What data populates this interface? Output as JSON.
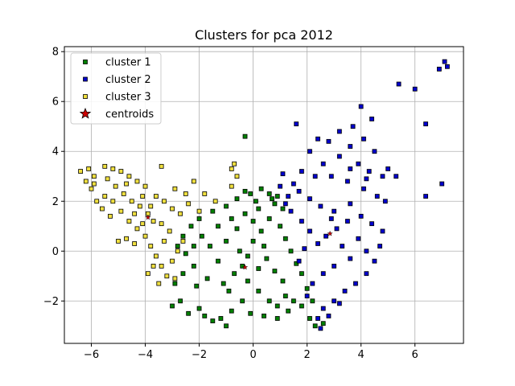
{
  "chart_data": {
    "type": "scatter",
    "title": "Clusters for pca 2012",
    "xlabel": "",
    "ylabel": "",
    "xlim": [
      -7.0,
      7.8
    ],
    "ylim": [
      -3.7,
      8.2
    ],
    "xticks": [
      -6,
      -4,
      -2,
      0,
      2,
      4,
      6
    ],
    "yticks": [
      -2,
      0,
      2,
      4,
      6,
      8
    ],
    "grid": true,
    "legend_position": "upper-left",
    "series": [
      {
        "name": "cluster 1",
        "color": "#008000",
        "marker": "square",
        "points": [
          [
            -0.3,
            2.4
          ],
          [
            0.3,
            2.5
          ],
          [
            0.6,
            2.3
          ],
          [
            0.9,
            2.2
          ],
          [
            -0.6,
            2.1
          ],
          [
            0.1,
            2.0
          ],
          [
            -1.0,
            1.8
          ],
          [
            -1.5,
            1.6
          ],
          [
            0.8,
            1.9
          ],
          [
            1.1,
            1.7
          ],
          [
            -2.0,
            1.3
          ],
          [
            -2.3,
            1.0
          ],
          [
            -2.6,
            0.6
          ],
          [
            -2.8,
            0.2
          ],
          [
            -2.5,
            -0.1
          ],
          [
            -2.2,
            -0.6
          ],
          [
            -2.6,
            -0.9
          ],
          [
            -2.9,
            -1.3
          ],
          [
            -3.0,
            -2.2
          ],
          [
            -2.7,
            -2.0
          ],
          [
            -2.4,
            -2.5
          ],
          [
            -2.0,
            -2.3
          ],
          [
            -2.1,
            -1.4
          ],
          [
            -1.7,
            -1.1
          ],
          [
            -1.8,
            -2.6
          ],
          [
            -1.5,
            -2.8
          ],
          [
            -1.2,
            -2.7
          ],
          [
            -1.0,
            -3.0
          ],
          [
            -0.8,
            -2.4
          ],
          [
            -0.9,
            -1.6
          ],
          [
            -1.3,
            -0.4
          ],
          [
            -1.6,
            0.2
          ],
          [
            -1.0,
            0.4
          ],
          [
            -0.6,
            0.9
          ],
          [
            -0.3,
            1.5
          ],
          [
            0.0,
            1.2
          ],
          [
            0.3,
            0.8
          ],
          [
            0.6,
            1.3
          ],
          [
            1.0,
            1.0
          ],
          [
            1.2,
            0.5
          ],
          [
            1.4,
            0.0
          ],
          [
            1.6,
            -0.5
          ],
          [
            1.8,
            -0.9
          ],
          [
            2.0,
            -1.5
          ],
          [
            2.2,
            -2.0
          ],
          [
            2.1,
            -2.7
          ],
          [
            2.3,
            -3.0
          ],
          [
            2.6,
            -2.9
          ],
          [
            1.8,
            -2.2
          ],
          [
            1.5,
            -2.0
          ],
          [
            1.2,
            -1.8
          ],
          [
            0.9,
            -2.2
          ],
          [
            0.6,
            -2.0
          ],
          [
            0.2,
            -1.6
          ],
          [
            -0.2,
            -1.2
          ],
          [
            -0.4,
            -0.6
          ],
          [
            -0.2,
            -0.2
          ],
          [
            0.2,
            -0.7
          ],
          [
            0.5,
            -0.3
          ],
          [
            0.8,
            -0.8
          ],
          [
            1.1,
            -1.2
          ],
          [
            0.4,
            0.2
          ],
          [
            0.0,
            0.4
          ],
          [
            -0.5,
            0.0
          ],
          [
            -0.7,
            -0.9
          ],
          [
            -1.1,
            -1.3
          ],
          [
            -0.4,
            -2.0
          ],
          [
            -0.1,
            -2.5
          ],
          [
            0.4,
            -2.6
          ],
          [
            0.9,
            -2.7
          ],
          [
            1.3,
            -2.4
          ],
          [
            -0.3,
            4.6
          ],
          [
            0.7,
            2.1
          ],
          [
            -0.1,
            2.3
          ],
          [
            0.2,
            1.7
          ],
          [
            -0.8,
            1.3
          ],
          [
            -1.3,
            1.0
          ],
          [
            -1.9,
            0.6
          ],
          [
            -2.2,
            0.2
          ]
        ]
      },
      {
        "name": "cluster 2",
        "color": "#0000cd",
        "marker": "square",
        "points": [
          [
            7.1,
            7.6
          ],
          [
            7.2,
            7.4
          ],
          [
            6.9,
            7.3
          ],
          [
            5.4,
            6.7
          ],
          [
            6.0,
            6.5
          ],
          [
            6.4,
            5.1
          ],
          [
            7.0,
            2.7
          ],
          [
            6.4,
            2.2
          ],
          [
            5.3,
            3.0
          ],
          [
            4.0,
            5.8
          ],
          [
            4.4,
            5.3
          ],
          [
            3.7,
            5.0
          ],
          [
            3.2,
            4.8
          ],
          [
            2.8,
            4.4
          ],
          [
            4.1,
            4.5
          ],
          [
            3.6,
            4.2
          ],
          [
            4.5,
            4.0
          ],
          [
            5.0,
            3.3
          ],
          [
            4.8,
            3.0
          ],
          [
            2.4,
            4.5
          ],
          [
            1.6,
            5.1
          ],
          [
            2.1,
            4.0
          ],
          [
            3.2,
            3.8
          ],
          [
            3.9,
            3.5
          ],
          [
            4.3,
            3.2
          ],
          [
            2.6,
            3.5
          ],
          [
            1.8,
            3.2
          ],
          [
            2.3,
            3.0
          ],
          [
            1.1,
            3.1
          ],
          [
            1.5,
            2.7
          ],
          [
            2.9,
            3.0
          ],
          [
            3.5,
            2.8
          ],
          [
            4.1,
            2.5
          ],
          [
            4.6,
            2.2
          ],
          [
            4.9,
            2.0
          ],
          [
            1.0,
            2.6
          ],
          [
            1.3,
            2.2
          ],
          [
            1.7,
            2.4
          ],
          [
            2.1,
            2.1
          ],
          [
            2.5,
            1.8
          ],
          [
            3.0,
            1.6
          ],
          [
            3.6,
            1.9
          ],
          [
            4.0,
            1.4
          ],
          [
            4.4,
            1.1
          ],
          [
            4.8,
            0.8
          ],
          [
            4.7,
            0.2
          ],
          [
            4.5,
            -0.4
          ],
          [
            4.2,
            -0.9
          ],
          [
            3.8,
            -1.3
          ],
          [
            3.4,
            -1.6
          ],
          [
            3.0,
            -2.0
          ],
          [
            2.6,
            -2.3
          ],
          [
            2.4,
            -2.7
          ],
          [
            2.5,
            -3.1
          ],
          [
            2.8,
            -2.6
          ],
          [
            3.2,
            -2.1
          ],
          [
            1.4,
            1.6
          ],
          [
            1.8,
            1.2
          ],
          [
            2.1,
            0.8
          ],
          [
            2.4,
            0.3
          ],
          [
            2.7,
            0.6
          ],
          [
            3.1,
            0.9
          ],
          [
            3.3,
            0.2
          ],
          [
            3.6,
            -0.3
          ],
          [
            3.0,
            -0.6
          ],
          [
            2.6,
            -0.9
          ],
          [
            2.2,
            -1.3
          ],
          [
            2.0,
            -1.8
          ],
          [
            1.7,
            -0.4
          ],
          [
            1.9,
            0.1
          ],
          [
            3.9,
            0.5
          ],
          [
            4.2,
            0.0
          ],
          [
            3.5,
            1.2
          ],
          [
            2.9,
            1.3
          ],
          [
            1.2,
            1.9
          ],
          [
            3.6,
            3.3
          ],
          [
            4.2,
            2.9
          ]
        ]
      },
      {
        "name": "cluster 3",
        "color": "#f0e040",
        "marker": "square",
        "points": [
          [
            -6.4,
            3.2
          ],
          [
            -6.1,
            3.3
          ],
          [
            -5.9,
            3.0
          ],
          [
            -6.2,
            2.8
          ],
          [
            -6.0,
            2.5
          ],
          [
            -5.8,
            2.0
          ],
          [
            -5.6,
            1.7
          ],
          [
            -5.9,
            2.7
          ],
          [
            -5.5,
            3.4
          ],
          [
            -5.2,
            3.3
          ],
          [
            -4.9,
            3.2
          ],
          [
            -4.6,
            3.0
          ],
          [
            -4.3,
            2.8
          ],
          [
            -4.0,
            2.6
          ],
          [
            -5.4,
            2.9
          ],
          [
            -5.1,
            2.6
          ],
          [
            -4.8,
            2.3
          ],
          [
            -4.5,
            2.0
          ],
          [
            -4.2,
            1.8
          ],
          [
            -3.9,
            1.5
          ],
          [
            -3.6,
            2.2
          ],
          [
            -3.3,
            2.0
          ],
          [
            -3.0,
            1.7
          ],
          [
            -2.7,
            1.5
          ],
          [
            -3.4,
            3.4
          ],
          [
            -2.9,
            2.5
          ],
          [
            -2.5,
            2.3
          ],
          [
            -2.2,
            2.8
          ],
          [
            -1.8,
            2.3
          ],
          [
            -1.4,
            2.0
          ],
          [
            -0.8,
            2.6
          ],
          [
            -0.7,
            3.5
          ],
          [
            -0.8,
            3.3
          ],
          [
            -0.6,
            3.0
          ],
          [
            -5.2,
            2.0
          ],
          [
            -4.9,
            1.6
          ],
          [
            -4.6,
            1.2
          ],
          [
            -4.3,
            0.9
          ],
          [
            -4.0,
            0.6
          ],
          [
            -3.8,
            0.2
          ],
          [
            -3.6,
            -0.2
          ],
          [
            -3.4,
            -0.6
          ],
          [
            -3.2,
            -1.0
          ],
          [
            -3.5,
            -1.3
          ],
          [
            -3.0,
            -0.4
          ],
          [
            -2.8,
            0.0
          ],
          [
            -2.6,
            0.4
          ],
          [
            -3.1,
            0.8
          ],
          [
            -3.4,
            1.1
          ],
          [
            -3.7,
            1.2
          ],
          [
            -4.1,
            1.1
          ],
          [
            -4.4,
            1.5
          ],
          [
            -5.0,
            0.4
          ],
          [
            -4.7,
            0.5
          ],
          [
            -4.4,
            0.3
          ],
          [
            -3.9,
            -0.9
          ],
          [
            -3.7,
            -0.6
          ],
          [
            -2.9,
            -1.1
          ],
          [
            -3.3,
            0.4
          ],
          [
            -5.5,
            2.2
          ],
          [
            -4.7,
            2.7
          ],
          [
            -4.1,
            2.2
          ],
          [
            -3.8,
            1.8
          ],
          [
            -5.3,
            1.4
          ],
          [
            -2.4,
            1.9
          ],
          [
            -2.0,
            1.6
          ]
        ]
      },
      {
        "name": "centroids",
        "color": "#cc0000",
        "marker": "star",
        "points": [
          [
            -3.9,
            1.35
          ],
          [
            -0.3,
            -0.65
          ],
          [
            2.85,
            0.7
          ]
        ]
      }
    ]
  }
}
